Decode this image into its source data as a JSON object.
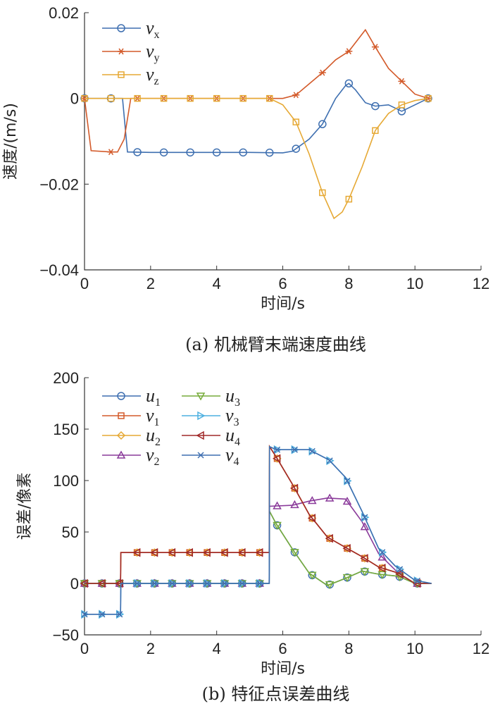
{
  "chart_data": [
    {
      "type": "line",
      "title": "(a) 机械臂末端速度曲线",
      "xlabel": "时间/s",
      "ylabel": "速度/(m/s)",
      "xlim": [
        0,
        12
      ],
      "ylim": [
        -0.04,
        0.02
      ],
      "xticks": [
        "0",
        "2",
        "4",
        "6",
        "8",
        "10",
        "12"
      ],
      "yticks": [
        "0.02",
        "0",
        "−0.02",
        "−0.04"
      ],
      "xtick_vals": [
        0,
        2,
        4,
        6,
        8,
        10,
        12
      ],
      "ytick_vals": [
        0.02,
        0,
        -0.02,
        -0.04
      ],
      "legend": "top-left",
      "marker_step": 0.8,
      "series": [
        {
          "name": "v",
          "sub": "x",
          "color": "#3e6fb0",
          "marker": "circle",
          "x": [
            0,
            1.15,
            1.3,
            2,
            4,
            5,
            6,
            6.3,
            6.8,
            7.2,
            7.6,
            7.9,
            8.0,
            8.2,
            8.5,
            8.8,
            9.2,
            9.6,
            10,
            10.4
          ],
          "y": [
            0,
            0,
            -0.0125,
            -0.0126,
            -0.0126,
            -0.0126,
            -0.0127,
            -0.0123,
            -0.0095,
            -0.006,
            0.0,
            0.003,
            0.0035,
            0.002,
            -0.001,
            -0.0018,
            -0.0015,
            -0.003,
            -0.0015,
            0
          ]
        },
        {
          "name": "v",
          "sub": "y",
          "color": "#d35a2a",
          "marker": "star",
          "x": [
            0,
            0.2,
            0.8,
            1.0,
            1.2,
            1.4,
            6.0,
            6.4,
            7.2,
            7.6,
            8.0,
            8.3,
            8.5,
            8.8,
            9.2,
            9.6,
            10,
            10.4
          ],
          "y": [
            0,
            -0.0122,
            -0.0125,
            -0.0125,
            -0.0095,
            0,
            0,
            0.0008,
            0.006,
            0.009,
            0.011,
            0.014,
            0.016,
            0.012,
            0.007,
            0.004,
            0.001,
            0
          ]
        },
        {
          "name": "v",
          "sub": "z",
          "color": "#e6a935",
          "marker": "square",
          "x": [
            0,
            5.6,
            6.0,
            6.4,
            6.8,
            7.2,
            7.55,
            7.8,
            8.0,
            8.4,
            8.8,
            9.2,
            9.6,
            10,
            10.4
          ],
          "y": [
            0,
            0,
            -0.0015,
            -0.0055,
            -0.013,
            -0.022,
            -0.028,
            -0.0265,
            -0.0235,
            -0.016,
            -0.0075,
            -0.0035,
            -0.0015,
            -0.0005,
            0
          ]
        }
      ]
    },
    {
      "type": "line",
      "title": "(b) 特征点误差曲线",
      "xlabel": "时间/s",
      "ylabel": "误差/像素",
      "xlim": [
        0,
        12
      ],
      "ylim": [
        -50,
        200
      ],
      "xticks": [
        "0",
        "2",
        "4",
        "6",
        "8",
        "10",
        "12"
      ],
      "yticks": [
        "200",
        "150",
        "100",
        "50",
        "0",
        "−50"
      ],
      "xtick_vals": [
        0,
        2,
        4,
        6,
        8,
        10,
        12
      ],
      "ytick_vals": [
        200,
        150,
        100,
        50,
        0,
        -50
      ],
      "legend": "top-left",
      "marker_step": 0.53,
      "series": [
        {
          "name": "u",
          "sub": "1",
          "color": "#3e6fb0",
          "marker": "circle",
          "x": [
            0,
            5.59,
            5.6,
            5.8,
            6.3,
            6.8,
            7.35,
            7.9,
            8.4,
            8.9,
            9.5,
            10,
            10.5
          ],
          "y": [
            0,
            0,
            70,
            58,
            33,
            10,
            -2,
            5,
            12,
            9,
            7,
            0,
            0
          ]
        },
        {
          "name": "v",
          "sub": "1",
          "color": "#d35a2a",
          "marker": "square",
          "x": [
            0,
            1.09,
            1.1,
            5.59,
            5.6,
            5.8,
            6.3,
            6.8,
            7.35,
            7.9,
            8.4,
            8.9,
            9.5,
            10,
            10.5
          ],
          "y": [
            0,
            0,
            30,
            30,
            133,
            123,
            96,
            67,
            45,
            35,
            26,
            16,
            10,
            0,
            0
          ]
        },
        {
          "name": "u",
          "sub": "2",
          "color": "#e6a935",
          "marker": "diamond",
          "x": [
            0,
            1.09,
            1.1,
            5.59,
            5.6,
            5.8,
            6.3,
            6.8,
            7.35,
            7.9,
            8.4,
            8.9,
            9.5,
            10,
            10.5
          ],
          "y": [
            0,
            0,
            30,
            30,
            133,
            123,
            96,
            67,
            45,
            35,
            26,
            16,
            10,
            0,
            0
          ]
        },
        {
          "name": "v",
          "sub": "2",
          "color": "#8a3a9a",
          "marker": "triangle-up",
          "x": [
            0,
            5.59,
            5.6,
            6.3,
            6.8,
            7.35,
            7.9,
            8.4,
            8.9,
            9.5,
            10,
            10.5
          ],
          "y": [
            0,
            0,
            75,
            76,
            80,
            83,
            82,
            60,
            29,
            10,
            0,
            0
          ]
        },
        {
          "name": "u",
          "sub": "3",
          "color": "#77ac3a",
          "marker": "triangle-down",
          "x": [
            0,
            5.59,
            5.6,
            5.8,
            6.3,
            6.8,
            7.35,
            7.9,
            8.4,
            8.9,
            9.5,
            10,
            10.5
          ],
          "y": [
            0,
            0,
            70,
            58,
            33,
            10,
            -2,
            5,
            12,
            9,
            7,
            0,
            0
          ]
        },
        {
          "name": "v",
          "sub": "3",
          "color": "#4db0e0",
          "marker": "triangle-right",
          "x": [
            0,
            1.09,
            1.1,
            5.59,
            5.6,
            5.8,
            6.3,
            6.8,
            7.4,
            7.9,
            8.4,
            8.9,
            9.4,
            10,
            10.5
          ],
          "y": [
            -30,
            -30,
            0,
            0,
            133,
            130,
            130,
            130,
            120,
            103,
            70,
            34,
            17,
            3,
            0
          ]
        },
        {
          "name": "u",
          "sub": "4",
          "color": "#a02828",
          "marker": "triangle-left",
          "x": [
            0,
            1.09,
            1.1,
            5.59,
            5.6,
            5.8,
            6.3,
            6.8,
            7.35,
            7.9,
            8.4,
            8.9,
            9.5,
            10,
            10.5
          ],
          "y": [
            0,
            0,
            30,
            30,
            133,
            123,
            96,
            67,
            45,
            35,
            26,
            16,
            10,
            0,
            0
          ]
        },
        {
          "name": "v",
          "sub": "4",
          "color": "#3e6fb0",
          "marker": "x",
          "x": [
            0,
            1.09,
            1.1,
            5.59,
            5.6,
            5.8,
            6.3,
            6.8,
            7.4,
            7.9,
            8.4,
            8.9,
            9.4,
            10,
            10.5
          ],
          "y": [
            -30,
            -30,
            0,
            0,
            133,
            130,
            130,
            130,
            120,
            103,
            70,
            34,
            17,
            3,
            0
          ]
        }
      ]
    }
  ]
}
